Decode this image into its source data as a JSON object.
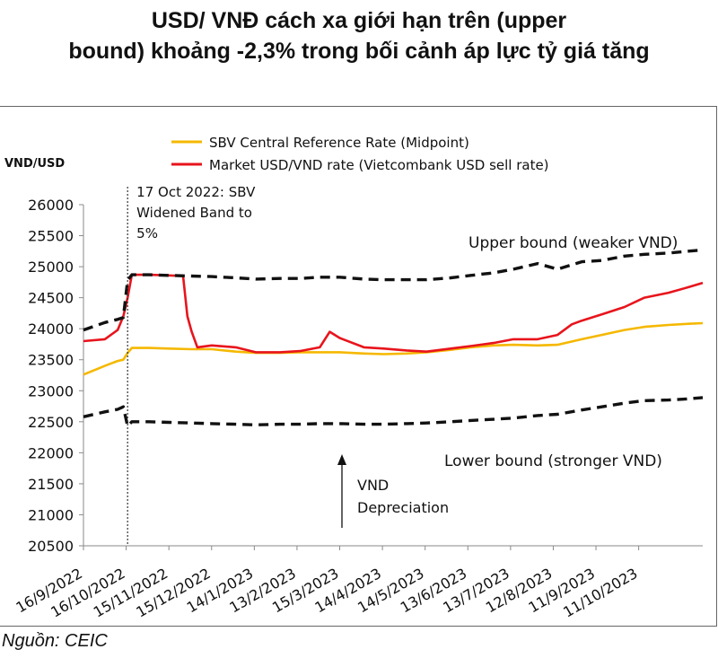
{
  "title_line1": "USD/ VNĐ cách xa giới hạn trên (upper",
  "title_line2": "bound) khoảng -2,3% trong bối cảnh áp lực tỷ giá tăng",
  "source": "Nguồn: CEIC",
  "chart_data": {
    "type": "line",
    "ylabel": "VND/USD",
    "ylim": [
      20500,
      26000
    ],
    "yticks": [
      26000,
      25500,
      25000,
      24500,
      24000,
      23500,
      23000,
      22500,
      22000,
      21500,
      21000,
      20500
    ],
    "xlim": [
      "2022-09-16",
      "2023-11-25"
    ],
    "xticks": [
      "16/9/2022",
      "16/10/2022",
      "15/11/2022",
      "15/12/2022",
      "14/1/2023",
      "13/2/2023",
      "15/3/2023",
      "14/4/2023",
      "14/5/2023",
      "13/6/2023",
      "13/7/2023",
      "12/8/2023",
      "11/9/2023",
      "11/10/2023"
    ],
    "legend": [
      {
        "label": "SBV Central Reference Rate (Midpoint)",
        "color": "#f5b800"
      },
      {
        "label": "Market USD/VND rate  (Vietcombank USD sell rate)",
        "color": "#e8141c"
      }
    ],
    "series": [
      {
        "name": "SBV Central Reference Rate (Midpoint)",
        "color": "#f5b800",
        "style": "solid",
        "x": [
          "2022-09-16",
          "2022-10-01",
          "2022-10-10",
          "2022-10-14",
          "2022-10-17",
          "2022-10-20",
          "2022-11-01",
          "2022-11-15",
          "2022-12-01",
          "2022-12-15",
          "2023-01-01",
          "2023-01-15",
          "2023-02-01",
          "2023-02-15",
          "2023-03-01",
          "2023-03-15",
          "2023-04-01",
          "2023-04-15",
          "2023-05-01",
          "2023-05-15",
          "2023-06-01",
          "2023-06-15",
          "2023-07-01",
          "2023-07-15",
          "2023-08-01",
          "2023-08-15",
          "2023-09-01",
          "2023-09-15",
          "2023-10-01",
          "2023-10-15",
          "2023-11-01",
          "2023-11-15",
          "2023-11-25"
        ],
        "y": [
          23260,
          23400,
          23480,
          23500,
          23610,
          23690,
          23690,
          23680,
          23670,
          23670,
          23630,
          23610,
          23610,
          23620,
          23620,
          23620,
          23600,
          23590,
          23600,
          23620,
          23660,
          23700,
          23730,
          23740,
          23730,
          23740,
          23830,
          23900,
          23980,
          24030,
          24060,
          24080,
          24090
        ]
      },
      {
        "name": "Market USD/VND rate  (Vietcombank USD sell rate)",
        "color": "#e8141c",
        "style": "solid",
        "x": [
          "2022-09-16",
          "2022-10-01",
          "2022-10-10",
          "2022-10-14",
          "2022-10-17",
          "2022-10-20",
          "2022-11-01",
          "2022-11-15",
          "2022-11-25",
          "2022-11-28",
          "2022-12-01",
          "2022-12-05",
          "2022-12-15",
          "2023-01-01",
          "2023-01-15",
          "2023-02-01",
          "2023-02-15",
          "2023-03-01",
          "2023-03-08",
          "2023-03-15",
          "2023-04-01",
          "2023-04-15",
          "2023-05-01",
          "2023-05-15",
          "2023-06-01",
          "2023-06-15",
          "2023-07-01",
          "2023-07-15",
          "2023-08-01",
          "2023-08-15",
          "2023-08-25",
          "2023-09-01",
          "2023-09-15",
          "2023-10-01",
          "2023-10-15",
          "2023-11-01",
          "2023-11-15",
          "2023-11-25"
        ],
        "y": [
          23800,
          23830,
          23980,
          24200,
          24500,
          24870,
          24870,
          24860,
          24850,
          24200,
          23950,
          23700,
          23730,
          23700,
          23620,
          23620,
          23640,
          23700,
          23950,
          23850,
          23700,
          23680,
          23650,
          23630,
          23680,
          23720,
          23770,
          23830,
          23830,
          23900,
          24070,
          24130,
          24230,
          24350,
          24500,
          24580,
          24670,
          24740
        ]
      },
      {
        "name": "Upper bound",
        "color": "#111111",
        "style": "dashed",
        "x": [
          "2022-09-16",
          "2022-10-01",
          "2022-10-10",
          "2022-10-14",
          "2022-10-17",
          "2022-10-20",
          "2022-11-01",
          "2022-11-15",
          "2022-12-01",
          "2022-12-15",
          "2023-01-01",
          "2023-01-15",
          "2023-02-01",
          "2023-02-15",
          "2023-03-01",
          "2023-03-15",
          "2023-04-01",
          "2023-04-15",
          "2023-05-01",
          "2023-05-15",
          "2023-06-01",
          "2023-06-15",
          "2023-07-01",
          "2023-07-15",
          "2023-08-01",
          "2023-08-15",
          "2023-09-01",
          "2023-09-15",
          "2023-10-01",
          "2023-10-15",
          "2023-11-01",
          "2023-11-15",
          "2023-11-25"
        ],
        "y": [
          23980,
          24100,
          24150,
          24180,
          24780,
          24870,
          24870,
          24860,
          24850,
          24840,
          24820,
          24800,
          24810,
          24810,
          24830,
          24830,
          24800,
          24790,
          24790,
          24790,
          24820,
          24860,
          24900,
          24960,
          25050,
          24960,
          25080,
          25100,
          25170,
          25200,
          25220,
          25250,
          25270
        ]
      },
      {
        "name": "Lower bound",
        "color": "#111111",
        "style": "dashed",
        "x": [
          "2022-09-16",
          "2022-10-01",
          "2022-10-10",
          "2022-10-14",
          "2022-10-17",
          "2022-10-20",
          "2022-11-01",
          "2022-11-15",
          "2022-12-01",
          "2022-12-15",
          "2023-01-01",
          "2023-01-15",
          "2023-02-01",
          "2023-02-15",
          "2023-03-01",
          "2023-03-15",
          "2023-04-01",
          "2023-04-15",
          "2023-05-01",
          "2023-05-15",
          "2023-06-01",
          "2023-06-15",
          "2023-07-01",
          "2023-07-15",
          "2023-08-01",
          "2023-08-15",
          "2023-09-01",
          "2023-09-15",
          "2023-10-01",
          "2023-10-15",
          "2023-11-01",
          "2023-11-15",
          "2023-11-25"
        ],
        "y": [
          22580,
          22660,
          22700,
          22740,
          22430,
          22500,
          22500,
          22490,
          22480,
          22470,
          22460,
          22450,
          22460,
          22460,
          22470,
          22470,
          22460,
          22460,
          22470,
          22480,
          22500,
          22520,
          22540,
          22560,
          22600,
          22620,
          22690,
          22740,
          22800,
          22840,
          22850,
          22870,
          22890
        ]
      }
    ],
    "event_line": {
      "x": "2022-10-17",
      "label_lines": [
        "17 Oct 2022: SBV",
        "Widened Band to",
        "5%"
      ]
    },
    "annotations": [
      {
        "text": "Upper bound (weaker VND)"
      },
      {
        "text": "Lower bound (stronger VND)"
      },
      {
        "text_lines": [
          "VND",
          "Depreciation"
        ]
      }
    ]
  }
}
